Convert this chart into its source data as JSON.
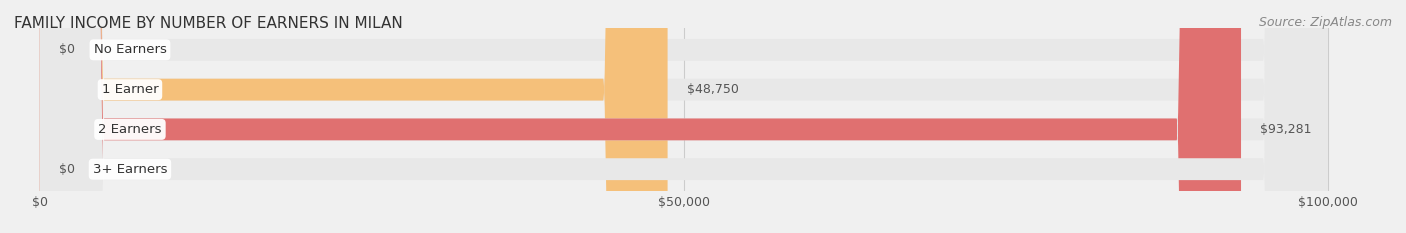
{
  "title": "FAMILY INCOME BY NUMBER OF EARNERS IN MILAN",
  "source": "Source: ZipAtlas.com",
  "categories": [
    "No Earners",
    "1 Earner",
    "2 Earners",
    "3+ Earners"
  ],
  "values": [
    0,
    48750,
    93281,
    0
  ],
  "bar_colors": [
    "#f4a0b0",
    "#f5c07a",
    "#e07070",
    "#a8c4e0"
  ],
  "label_colors": [
    "#f4a0b0",
    "#f5c07a",
    "#e07070",
    "#a8c4e0"
  ],
  "bar_labels": [
    "$0",
    "$48,750",
    "$93,281",
    "$0"
  ],
  "xlim": [
    0,
    100000
  ],
  "xticks": [
    0,
    50000,
    100000
  ],
  "xtick_labels": [
    "$0",
    "$50,000",
    "$100,000"
  ],
  "bg_color": "#f0f0f0",
  "bar_bg_color": "#e8e8e8",
  "bar_height": 0.55,
  "title_fontsize": 11,
  "label_fontsize": 9.5,
  "value_fontsize": 9,
  "source_fontsize": 9
}
